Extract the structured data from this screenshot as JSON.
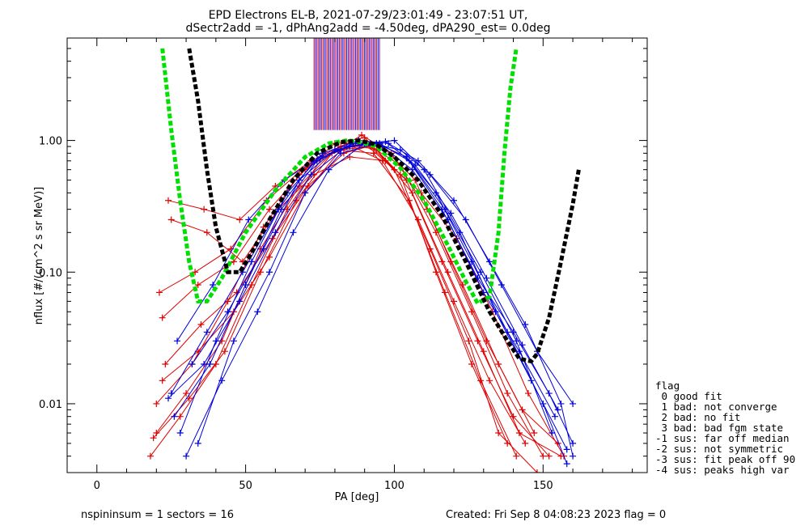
{
  "chart_data": {
    "type": "line",
    "title_line1": "EPD Electrons EL-B, 2021-07-29/23:01:49 - 23:07:51 UT,",
    "title_line2": "dSectr2add = -1, dPhAng2add = -4.50deg, dPA290_est=   0.0deg",
    "xlabel": "PA [deg]",
    "ylabel": "nflux [#/(cm^2 s sr MeV)]",
    "xlim": [
      -10,
      185
    ],
    "ylim": [
      0.003,
      6
    ],
    "yscale": "log",
    "xticks": [
      0,
      50,
      100,
      150
    ],
    "yticks": [
      {
        "value": 0.01,
        "label": "0.01"
      },
      {
        "value": 0.1,
        "label": "0.10"
      },
      {
        "value": 1.0,
        "label": "1.00"
      }
    ],
    "colors": {
      "red": "#e00000",
      "blue": "#0000dd",
      "purple": "#7a00aa",
      "green": "#00e000",
      "black": "#000000"
    },
    "series": [
      {
        "color": "red",
        "x": [
          20,
          30,
          42,
          55,
          68,
          80,
          90,
          100,
          112,
          125,
          135,
          148
        ],
        "y": [
          0.006,
          0.012,
          0.03,
          0.15,
          0.45,
          0.85,
          0.95,
          0.6,
          0.15,
          0.03,
          0.006,
          0.003
        ]
      },
      {
        "color": "red",
        "x": [
          22,
          34,
          46,
          58,
          70,
          82,
          92,
          104,
          116,
          128,
          140,
          152
        ],
        "y": [
          0.045,
          0.08,
          0.12,
          0.3,
          0.6,
          0.9,
          0.9,
          0.5,
          0.12,
          0.03,
          0.008,
          0.004
        ]
      },
      {
        "color": "red",
        "x": [
          20,
          32,
          44,
          56,
          68,
          80,
          90,
          102,
          114,
          126,
          138
        ],
        "y": [
          0.01,
          0.02,
          0.06,
          0.22,
          0.55,
          0.95,
          1.05,
          0.55,
          0.1,
          0.02,
          0.005
        ]
      },
      {
        "color": "red",
        "x": [
          24,
          36,
          48,
          60,
          72,
          84,
          94,
          106,
          118,
          130,
          142,
          156
        ],
        "y": [
          0.35,
          0.3,
          0.25,
          0.45,
          0.7,
          0.95,
          0.85,
          0.4,
          0.1,
          0.025,
          0.006,
          0.004
        ]
      },
      {
        "color": "red",
        "x": [
          18,
          28,
          40,
          52,
          64,
          76,
          86,
          96,
          108,
          120,
          132,
          144
        ],
        "y": [
          0.004,
          0.008,
          0.02,
          0.08,
          0.3,
          0.75,
          0.9,
          0.7,
          0.25,
          0.06,
          0.015,
          0.005
        ]
      },
      {
        "color": "red",
        "x": [
          21,
          33,
          45,
          57,
          69,
          81,
          93,
          105,
          117,
          129,
          141
        ],
        "y": [
          0.07,
          0.1,
          0.15,
          0.35,
          0.6,
          0.85,
          0.8,
          0.35,
          0.07,
          0.015,
          0.004
        ]
      },
      {
        "color": "red",
        "x": [
          23,
          35,
          47,
          59,
          71,
          83,
          95,
          107,
          119,
          131,
          143,
          155
        ],
        "y": [
          0.02,
          0.04,
          0.07,
          0.18,
          0.45,
          0.8,
          0.95,
          0.5,
          0.12,
          0.03,
          0.009,
          0.005
        ]
      },
      {
        "color": "red",
        "x": [
          19,
          31,
          43,
          55,
          67,
          79,
          89,
          99,
          111,
          123,
          135,
          147
        ],
        "y": [
          0.0055,
          0.011,
          0.025,
          0.1,
          0.35,
          0.8,
          1.1,
          0.8,
          0.3,
          0.08,
          0.02,
          0.006
        ]
      },
      {
        "color": "red",
        "x": [
          25,
          37,
          49,
          61,
          73,
          85,
          97,
          109,
          121,
          133,
          145,
          157
        ],
        "y": [
          0.25,
          0.2,
          0.12,
          0.3,
          0.55,
          0.75,
          0.7,
          0.4,
          0.18,
          0.05,
          0.012,
          0.004
        ]
      },
      {
        "color": "red",
        "x": [
          22,
          34,
          46,
          58,
          70,
          82,
          92,
          102,
          114,
          126,
          138,
          150
        ],
        "y": [
          0.015,
          0.025,
          0.05,
          0.13,
          0.4,
          0.85,
          0.9,
          0.65,
          0.2,
          0.05,
          0.012,
          0.004
        ]
      },
      {
        "color": "blue",
        "x": [
          24,
          36,
          48,
          60,
          72,
          84,
          94,
          104,
          116,
          128,
          140,
          152,
          160
        ],
        "y": [
          0.011,
          0.02,
          0.06,
          0.2,
          0.55,
          0.9,
          0.95,
          0.75,
          0.3,
          0.09,
          0.035,
          0.012,
          0.005
        ]
      },
      {
        "color": "blue",
        "x": [
          26,
          38,
          50,
          62,
          74,
          86,
          96,
          106,
          118,
          130,
          142,
          154
        ],
        "y": [
          0.008,
          0.02,
          0.08,
          0.3,
          0.7,
          0.95,
          0.9,
          0.6,
          0.25,
          0.07,
          0.025,
          0.008
        ]
      },
      {
        "color": "blue",
        "x": [
          28,
          40,
          52,
          64,
          76,
          88,
          98,
          108,
          120,
          132,
          144,
          156,
          160
        ],
        "y": [
          0.006,
          0.03,
          0.12,
          0.4,
          0.8,
          1.0,
          0.95,
          0.7,
          0.35,
          0.12,
          0.04,
          0.01,
          0.004
        ]
      },
      {
        "color": "blue",
        "x": [
          30,
          42,
          54,
          66,
          78,
          90,
          100,
          110,
          122,
          134,
          146,
          158
        ],
        "y": [
          0.004,
          0.015,
          0.05,
          0.2,
          0.6,
          0.95,
          1.0,
          0.6,
          0.2,
          0.05,
          0.015,
          0.0045
        ]
      },
      {
        "color": "blue",
        "x": [
          32,
          44,
          56,
          68,
          80,
          92,
          102,
          112,
          124,
          136,
          148,
          160
        ],
        "y": [
          0.02,
          0.05,
          0.15,
          0.5,
          0.85,
          0.95,
          0.85,
          0.55,
          0.25,
          0.08,
          0.025,
          0.01
        ]
      },
      {
        "color": "blue",
        "x": [
          25,
          37,
          49,
          61,
          73,
          85,
          95,
          105,
          117,
          129,
          141,
          153
        ],
        "y": [
          0.012,
          0.035,
          0.1,
          0.3,
          0.7,
          0.9,
          0.95,
          0.7,
          0.3,
          0.1,
          0.03,
          0.006
        ]
      },
      {
        "color": "blue",
        "x": [
          34,
          46,
          58,
          70,
          82,
          94,
          104,
          114,
          126,
          138,
          150,
          158
        ],
        "y": [
          0.005,
          0.03,
          0.1,
          0.4,
          0.8,
          0.95,
          0.75,
          0.4,
          0.12,
          0.035,
          0.01,
          0.0035
        ]
      },
      {
        "color": "blue",
        "x": [
          27,
          39,
          51,
          63,
          75,
          87,
          97,
          107,
          119,
          131,
          143,
          155
        ],
        "y": [
          0.03,
          0.08,
          0.25,
          0.5,
          0.75,
          0.95,
          0.98,
          0.65,
          0.28,
          0.09,
          0.028,
          0.009
        ]
      }
    ],
    "fit_curves": [
      {
        "color": "green",
        "style": "dashed",
        "x": [
          22,
          25,
          28,
          31,
          34,
          37,
          42,
          50,
          60,
          70,
          78,
          84,
          88,
          94,
          102,
          110,
          118,
          124,
          128,
          132,
          135,
          137,
          139,
          141
        ],
        "y": [
          5,
          1.2,
          0.35,
          0.12,
          0.06,
          0.06,
          0.09,
          0.2,
          0.42,
          0.75,
          0.95,
          1.0,
          0.98,
          0.9,
          0.62,
          0.35,
          0.16,
          0.085,
          0.058,
          0.065,
          0.2,
          0.8,
          2.5,
          5
        ]
      },
      {
        "color": "black",
        "style": "dashed",
        "x": [
          31,
          34,
          37,
          40,
          44,
          48,
          52,
          58,
          66,
          74,
          82,
          88,
          94,
          100,
          108,
          116,
          124,
          132,
          138,
          142,
          146,
          148,
          152,
          156,
          160,
          162
        ],
        "y": [
          5,
          2.0,
          0.6,
          0.22,
          0.1,
          0.1,
          0.14,
          0.25,
          0.5,
          0.8,
          0.97,
          1.0,
          0.93,
          0.75,
          0.5,
          0.27,
          0.12,
          0.05,
          0.03,
          0.022,
          0.021,
          0.024,
          0.045,
          0.12,
          0.33,
          0.6
        ]
      }
    ],
    "vertical_lines": {
      "x_start": 73,
      "x_end": 95,
      "count": 45,
      "y_from": 1.2,
      "colors": [
        "red",
        "blue",
        "purple"
      ]
    },
    "legend": {
      "placement": "right-bottom",
      "title": "flag",
      "entries": [
        "0 good fit",
        "1 bad: not converge",
        "2 bad: no fit",
        "3 bad: bad fgm state",
        "-1 sus: far off median",
        "-2 sus: not symmetric",
        "-3 sus: fit peak off 90",
        "-4 sus: peaks high var"
      ]
    }
  },
  "footer": {
    "left": "nspininsum =  1  sectors = 16",
    "right": "Created: Fri Sep  8 04:08:23 2023   flag = 0"
  }
}
